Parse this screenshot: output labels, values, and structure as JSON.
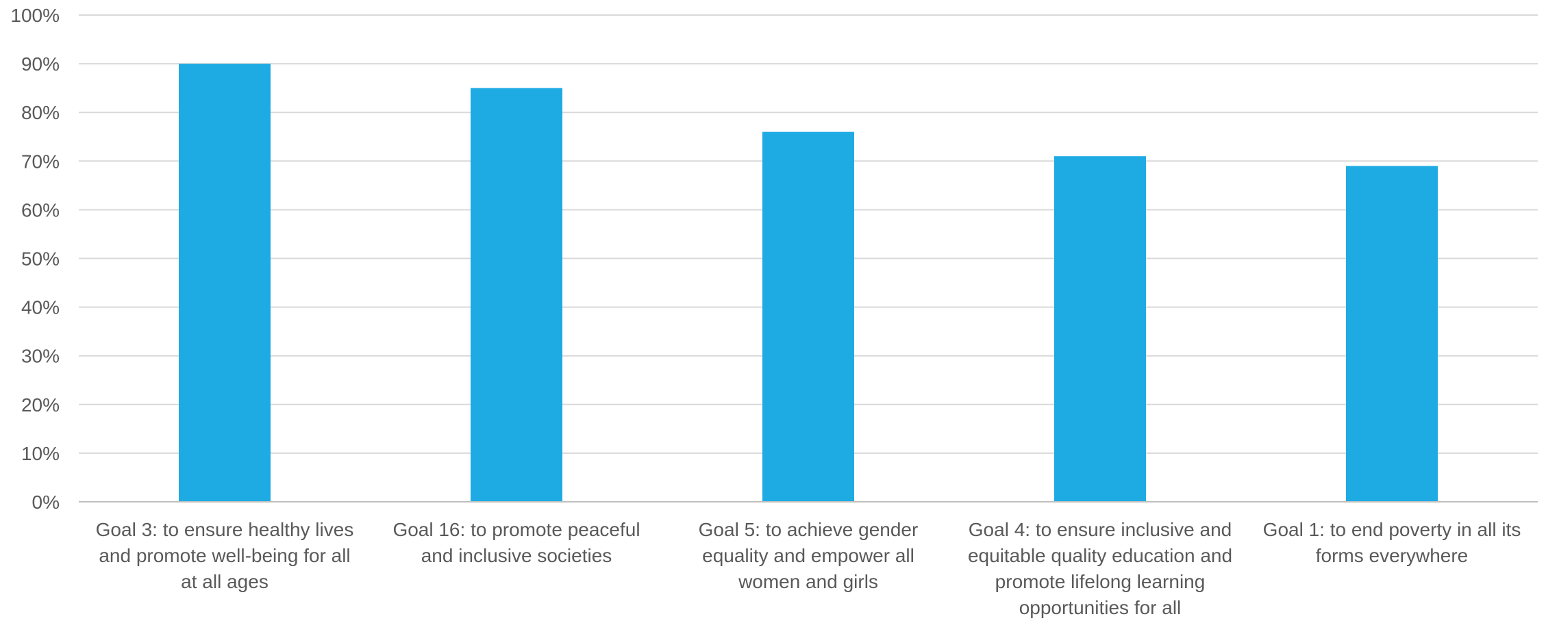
{
  "chart_data": {
    "type": "bar",
    "title": "",
    "xlabel": "",
    "ylabel": "",
    "ylim": [
      0,
      100
    ],
    "yticks": [
      0,
      10,
      20,
      30,
      40,
      50,
      60,
      70,
      80,
      90,
      100
    ],
    "ytick_suffix": "%",
    "grid": true,
    "legend": "none",
    "bar_color": "#1EABE3",
    "categories": [
      "Goal 3: to ensure healthy lives and promote well-being for all at all ages",
      "Goal 16: to promote peaceful and inclusive societies",
      "Goal 5: to achieve gender equality and empower all women and girls",
      "Goal 4: to ensure inclusive and equitable quality education and promote lifelong learning opportunities for all",
      "Goal 1: to end poverty in all its forms everywhere"
    ],
    "category_lines": [
      [
        "Goal 3: to ensure healthy lives",
        "and promote well-being for all",
        "at all ages"
      ],
      [
        "Goal 16: to promote peaceful",
        "and inclusive societies"
      ],
      [
        "Goal 5: to achieve gender",
        "equality and empower all",
        "women and girls"
      ],
      [
        "Goal 4: to ensure inclusive and",
        "equitable quality education and",
        "promote lifelong learning",
        "opportunities for all"
      ],
      [
        "Goal 1: to end poverty in all its",
        "forms everywhere"
      ]
    ],
    "values": [
      90,
      85,
      76,
      71,
      69
    ]
  }
}
